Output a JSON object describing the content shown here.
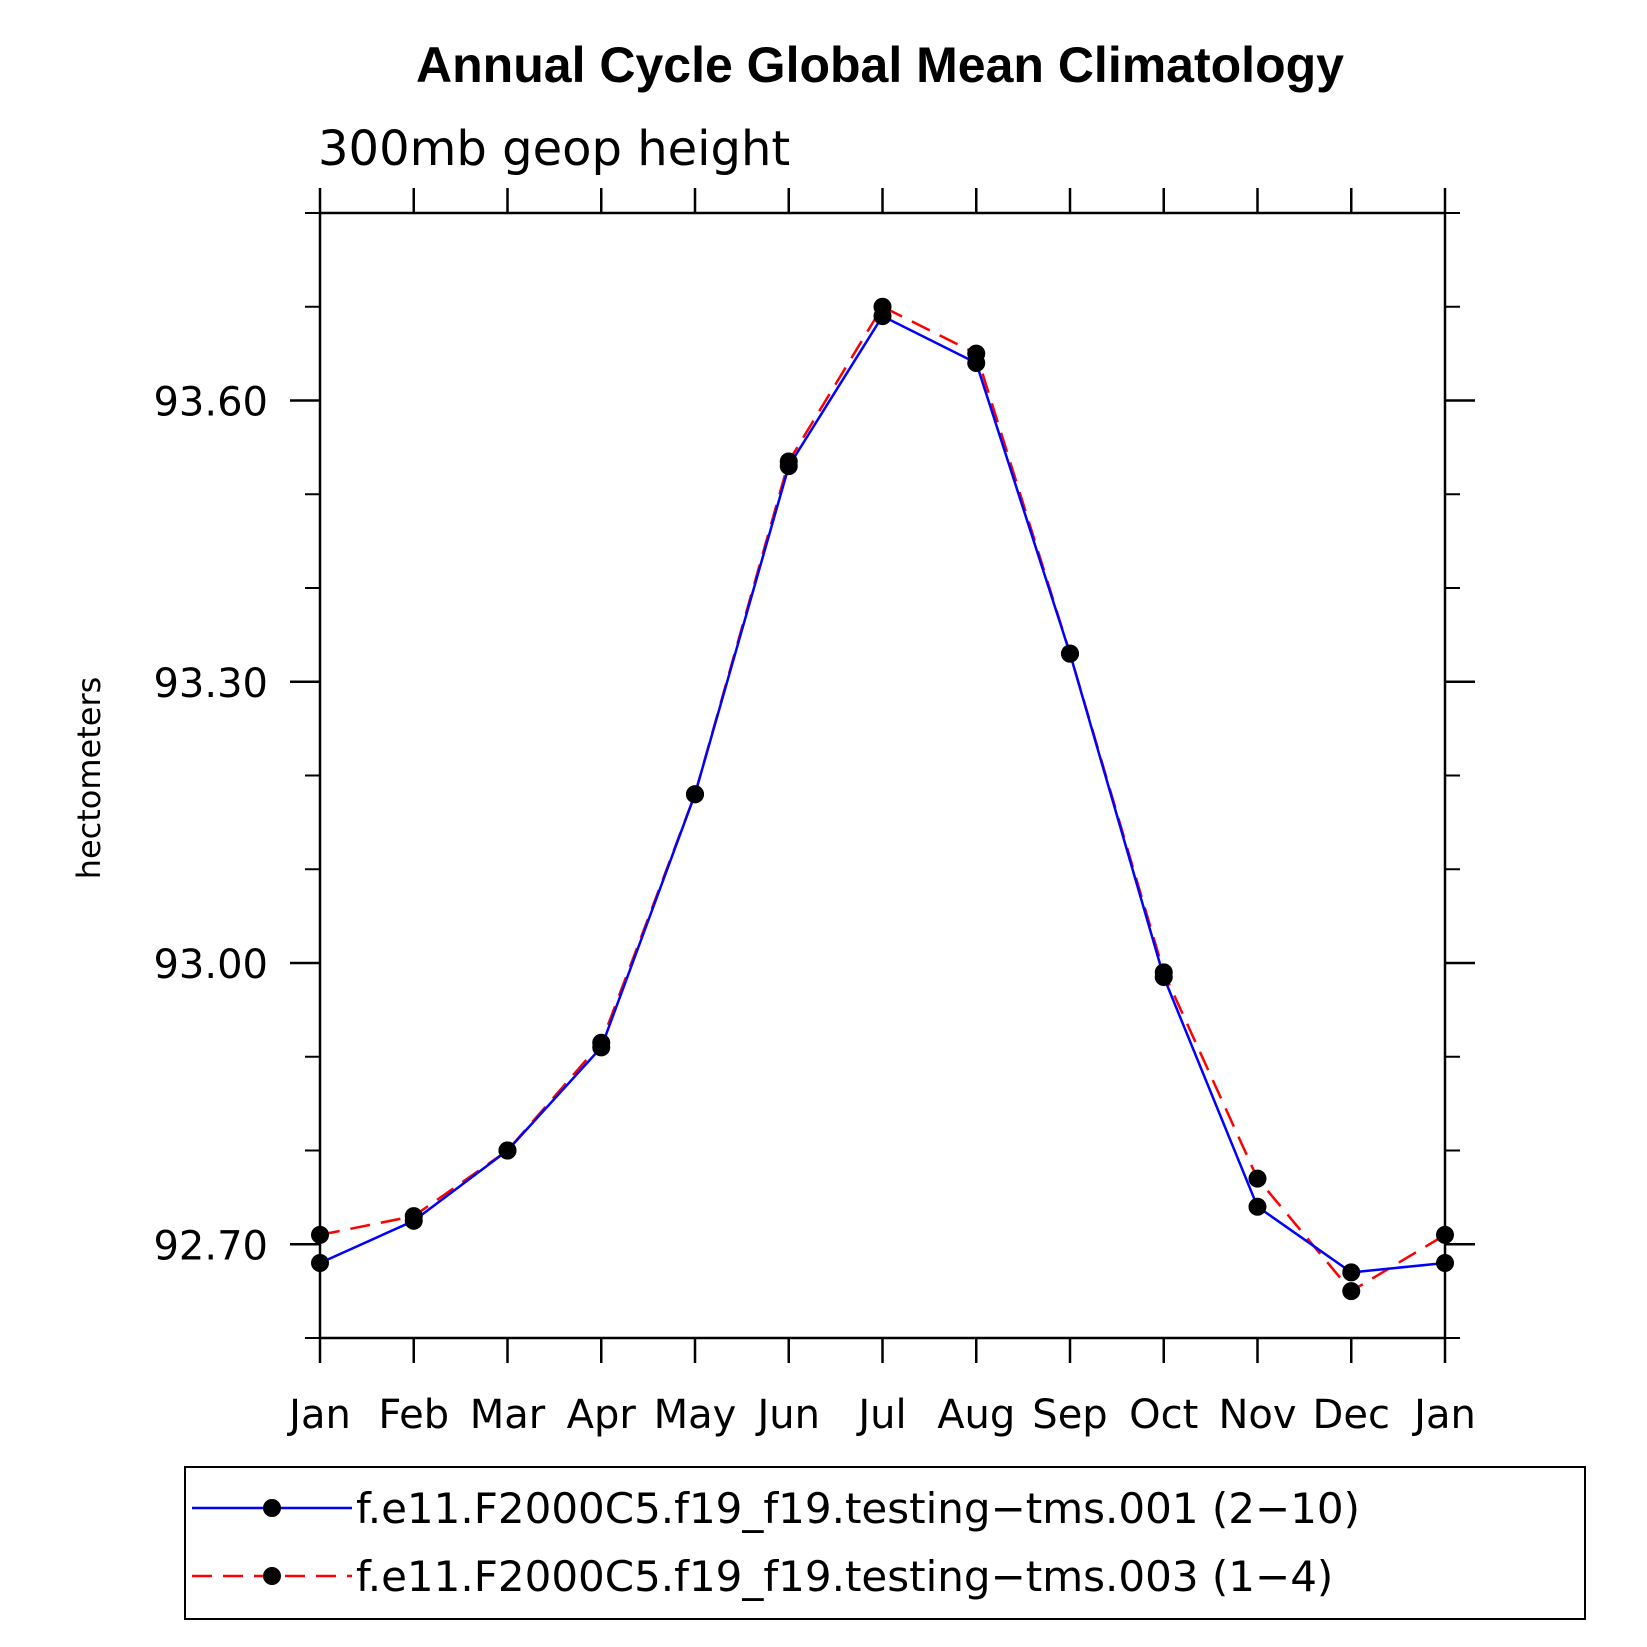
{
  "chart_data": {
    "type": "line",
    "title": "Annual Cycle Global Mean Climatology",
    "subtitle": "300mb geop height",
    "ylabel": "hectometers",
    "xlabel": "",
    "categories": [
      "Jan",
      "Feb",
      "Mar",
      "Apr",
      "May",
      "Jun",
      "Jul",
      "Aug",
      "Sep",
      "Oct",
      "Nov",
      "Dec",
      "Jan"
    ],
    "ylim": [
      92.6,
      93.8
    ],
    "yticks_major": [
      92.7,
      93.0,
      93.3,
      93.6
    ],
    "ytick_labels": [
      "92.70",
      "93.00",
      "93.30",
      "93.60"
    ],
    "yticks_minor_step": 0.1,
    "grid": false,
    "legend_position": "bottom",
    "series": [
      {
        "name": "f.e11.F2000C5.f19_f19.testing−tms.001 (2−10)",
        "color": "#0000ff",
        "style": "solid",
        "marker": "circle",
        "values": [
          92.68,
          92.725,
          92.8,
          92.91,
          93.18,
          93.53,
          93.69,
          93.64,
          93.33,
          92.985,
          92.74,
          92.67,
          92.68
        ]
      },
      {
        "name": "f.e11.F2000C5.f19_f19.testing−tms.003 (1−4)",
        "color": "#ff0000",
        "style": "dashed",
        "marker": "circle",
        "values": [
          92.71,
          92.73,
          92.8,
          92.915,
          93.18,
          93.535,
          93.7,
          93.65,
          93.33,
          92.99,
          92.77,
          92.65,
          92.71
        ]
      }
    ]
  }
}
